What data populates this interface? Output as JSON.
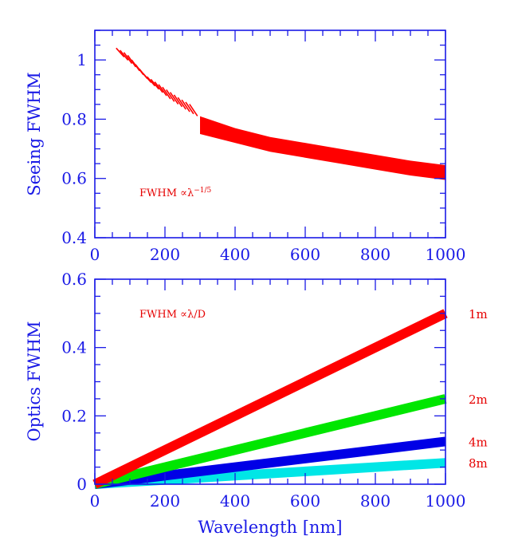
{
  "chart_data": [
    {
      "type": "area",
      "ylabel": "Seeing FWHM",
      "xlabel": "",
      "xlim": [
        0,
        1000
      ],
      "ylim": [
        0.4,
        1.1
      ],
      "x_ticks": [
        0,
        200,
        400,
        600,
        800,
        1000
      ],
      "y_ticks": [
        0.4,
        0.6,
        0.8,
        1
      ],
      "y_tick_labels": [
        "0.4",
        "0.6",
        "0.8",
        "1"
      ],
      "annotation": "FWHM ∝λ",
      "annotation_exponent": "−1/5",
      "colors": {
        "band": "#ff0000",
        "axis": "#1a1ae6"
      },
      "series": [
        {
          "style": "hatched",
          "x": [
            70,
            100,
            150,
            200,
            250,
            280
          ],
          "lower": [
            1.01,
            0.98,
            0.92,
            0.87,
            0.83,
            0.81
          ],
          "upper": [
            1.04,
            1.02,
            0.95,
            0.91,
            0.87,
            0.85
          ]
        },
        {
          "style": "solid",
          "x": [
            300,
            400,
            500,
            600,
            700,
            800,
            900,
            1000
          ],
          "lower": [
            0.75,
            0.72,
            0.69,
            0.67,
            0.65,
            0.63,
            0.61,
            0.595
          ],
          "upper": [
            0.81,
            0.77,
            0.74,
            0.72,
            0.7,
            0.68,
            0.66,
            0.645
          ]
        }
      ]
    },
    {
      "type": "line",
      "ylabel": "Optics FWHM",
      "xlabel": "Wavelength [nm]",
      "xlim": [
        0,
        1000
      ],
      "ylim": [
        0,
        0.6
      ],
      "x_ticks": [
        0,
        200,
        400,
        600,
        800,
        1000
      ],
      "y_ticks": [
        0,
        0.2,
        0.4,
        0.6
      ],
      "y_tick_labels": [
        "0",
        "0.2",
        "0.4",
        "0.6"
      ],
      "annotation": "FWHM ∝λ/D",
      "series": [
        {
          "name": "1m",
          "color": "#ff0000",
          "x": [
            0,
            1000
          ],
          "y": [
            0,
            0.5
          ]
        },
        {
          "name": "2m",
          "color": "#00e600",
          "x": [
            0,
            1000
          ],
          "y": [
            0,
            0.25
          ]
        },
        {
          "name": "4m",
          "color": "#0000e6",
          "x": [
            0,
            1000
          ],
          "y": [
            0,
            0.125
          ]
        },
        {
          "name": "8m",
          "color": "#00e6e6",
          "x": [
            0,
            1000
          ],
          "y": [
            0,
            0.0625
          ]
        }
      ]
    }
  ]
}
